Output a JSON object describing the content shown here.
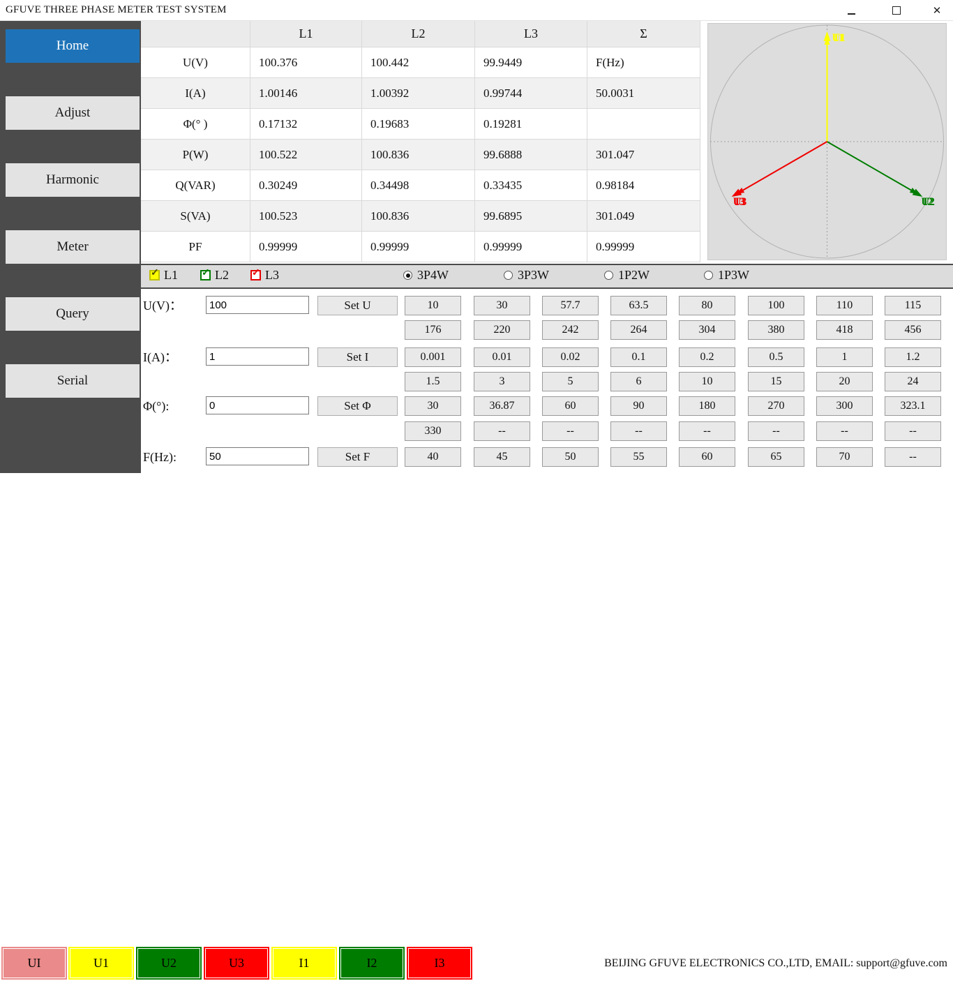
{
  "window": {
    "title": "GFUVE THREE PHASE METER TEST SYSTEM"
  },
  "colors": {
    "accent_blue": "#1e73b8",
    "sidebar_bg": "#4b4b4b",
    "yellow": "#ffff00",
    "green": "#007d00",
    "red": "#f00000",
    "salmon": "#ea8a8a"
  },
  "sidebar": {
    "items": [
      {
        "label": "Home",
        "active": true
      },
      {
        "label": "Adjust",
        "active": false
      },
      {
        "label": "Harmonic",
        "active": false
      },
      {
        "label": "Meter",
        "active": false
      },
      {
        "label": "Query",
        "active": false
      },
      {
        "label": "Serial",
        "active": false
      }
    ]
  },
  "table": {
    "headers": [
      "",
      "L1",
      "L2",
      "L3",
      "Σ"
    ],
    "rows": [
      {
        "label": "U(V)",
        "values": [
          "100.376",
          "100.442",
          "99.9449",
          "F(Hz)"
        ]
      },
      {
        "label": "I(A)",
        "values": [
          "1.00146",
          "1.00392",
          "0.99744",
          "50.0031"
        ]
      },
      {
        "label": "Φ(° )",
        "values": [
          "0.17132",
          "0.19683",
          "0.19281",
          ""
        ]
      },
      {
        "label": "P(W)",
        "values": [
          "100.522",
          "100.836",
          "99.6888",
          "301.047"
        ]
      },
      {
        "label": "Q(VAR)",
        "values": [
          "0.30249",
          "0.34498",
          "0.33435",
          "0.98184"
        ]
      },
      {
        "label": "S(VA)",
        "values": [
          "100.523",
          "100.836",
          "99.6895",
          "301.049"
        ]
      },
      {
        "label": "PF",
        "values": [
          "0.99999",
          "0.99999",
          "0.99999",
          "0.99999"
        ]
      }
    ]
  },
  "phase_checkboxes": [
    {
      "label": "L1",
      "checked": true,
      "box_bg": "#ffff00",
      "border": "#bfbf00",
      "tick": "#4d4d00"
    },
    {
      "label": "L2",
      "checked": true,
      "box_bg": "#ffffff",
      "border": "#007d00",
      "tick": "#007d00"
    },
    {
      "label": "L3",
      "checked": true,
      "box_bg": "#ffffff",
      "border": "#e60000",
      "tick": "#e60000"
    }
  ],
  "wiring_radios": [
    {
      "label": "3P4W",
      "selected": true
    },
    {
      "label": "3P3W",
      "selected": false
    },
    {
      "label": "1P2W",
      "selected": false
    },
    {
      "label": "1P3W",
      "selected": false
    }
  ],
  "setters": [
    {
      "key": "u",
      "label": "U(V)：",
      "value": "100",
      "button": "Set U"
    },
    {
      "key": "i",
      "label": "I(A)：",
      "value": "1",
      "button": "Set I"
    },
    {
      "key": "phi",
      "label": "Φ(°):",
      "value": "0",
      "button": "Set Φ"
    },
    {
      "key": "f",
      "label": "F(Hz):",
      "value": "50",
      "button": "Set F"
    }
  ],
  "presets": {
    "voltage": [
      [
        "10",
        "30",
        "57.7",
        "63.5",
        "80",
        "100",
        "110",
        "115"
      ],
      [
        "176",
        "220",
        "242",
        "264",
        "304",
        "380",
        "418",
        "456"
      ]
    ],
    "current": [
      [
        "0.001",
        "0.01",
        "0.02",
        "0.1",
        "0.2",
        "0.5",
        "1",
        "1.2"
      ],
      [
        "1.5",
        "3",
        "5",
        "6",
        "10",
        "15",
        "20",
        "24"
      ]
    ],
    "phase": [
      [
        "30",
        "36.87",
        "60",
        "90",
        "180",
        "270",
        "300",
        "323.1"
      ],
      [
        "330",
        "--",
        "--",
        "--",
        "--",
        "--",
        "--",
        "--"
      ]
    ],
    "frequency": [
      [
        "40",
        "45",
        "50",
        "55",
        "60",
        "65",
        "70",
        "--"
      ]
    ]
  },
  "phasor": {
    "vectors": [
      {
        "u_label": "U1",
        "i_label": "I1",
        "angle_deg": 90,
        "color": "#ffff00"
      },
      {
        "u_label": "U2",
        "i_label": "I2",
        "angle_deg": -30,
        "color": "#007d00"
      },
      {
        "u_label": "U3",
        "i_label": "I3",
        "angle_deg": 210,
        "color": "#f00000"
      }
    ]
  },
  "bottom_bar": {
    "buttons": [
      {
        "label": "UI",
        "color": "#ea8a8a"
      },
      {
        "label": "U1",
        "color": "#ffff00"
      },
      {
        "label": "U2",
        "color": "#007d00"
      },
      {
        "label": "U3",
        "color": "#ff0000"
      },
      {
        "label": "I1",
        "color": "#ffff00"
      },
      {
        "label": "I2",
        "color": "#007d00"
      },
      {
        "label": "I3",
        "color": "#ff0000"
      }
    ],
    "company_text": "BEIJING GFUVE ELECTRONICS CO.,LTD,  EMAIL: support@gfuve.com"
  }
}
